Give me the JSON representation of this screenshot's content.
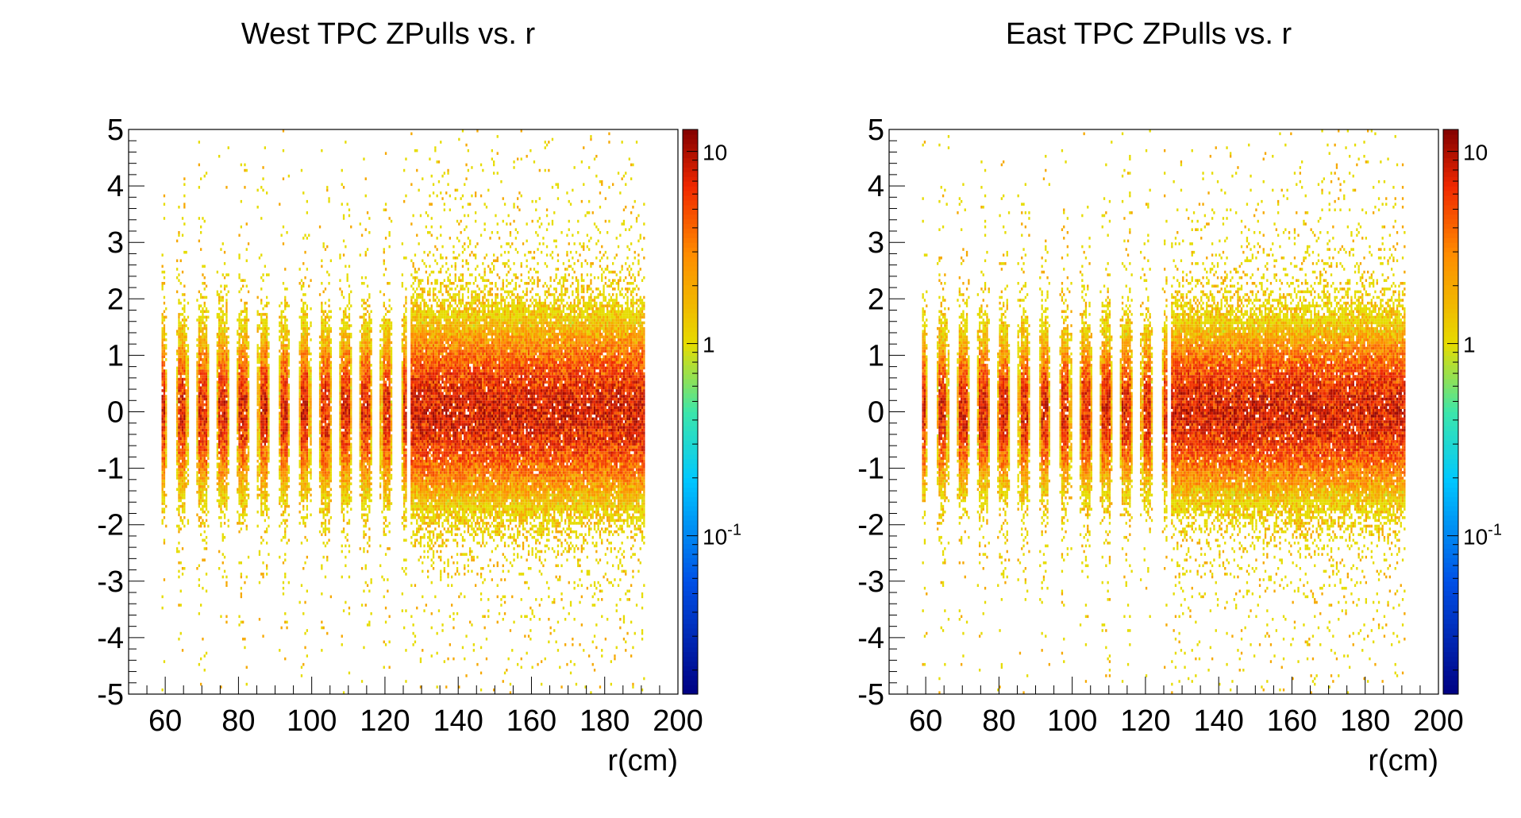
{
  "chart_data": [
    {
      "type": "heatmap",
      "title": "West TPC ZPulls vs. r",
      "xlabel": "r(cm)",
      "ylabel": "",
      "xlim": [
        50,
        200
      ],
      "ylim": [
        -5,
        5
      ],
      "x_ticks": [
        "60",
        "80",
        "100",
        "120",
        "140",
        "160",
        "180",
        "200"
      ],
      "y_ticks": [
        "-5",
        "-4",
        "-3",
        "-2",
        "-1",
        "0",
        "1",
        "2",
        "3",
        "4",
        "5"
      ],
      "color_scale": {
        "type": "log",
        "min": 0.015,
        "max": 13,
        "ticks": [
          "10",
          "1",
          "10-1"
        ]
      },
      "inner_sector": {
        "r_range": [
          59,
          126
        ],
        "row_count": 13,
        "core_sigma": 0.75
      },
      "outer_sector": {
        "r_range": [
          127,
          191
        ],
        "core_sigma": 0.85
      },
      "grid": false
    },
    {
      "type": "heatmap",
      "title": "East TPC ZPulls vs. r",
      "xlabel": "r(cm)",
      "ylabel": "",
      "xlim": [
        50,
        200
      ],
      "ylim": [
        -5,
        5
      ],
      "x_ticks": [
        "60",
        "80",
        "100",
        "120",
        "140",
        "160",
        "180",
        "200"
      ],
      "y_ticks": [
        "-5",
        "-4",
        "-3",
        "-2",
        "-1",
        "0",
        "1",
        "2",
        "3",
        "4",
        "5"
      ],
      "color_scale": {
        "type": "log",
        "min": 0.015,
        "max": 13,
        "ticks": [
          "10",
          "1",
          "10-1"
        ]
      },
      "inner_sector": {
        "r_range": [
          59,
          126
        ],
        "row_count": 13,
        "core_sigma": 0.72
      },
      "outer_sector": {
        "r_range": [
          127,
          191
        ],
        "core_sigma": 0.8
      },
      "grid": false
    }
  ]
}
